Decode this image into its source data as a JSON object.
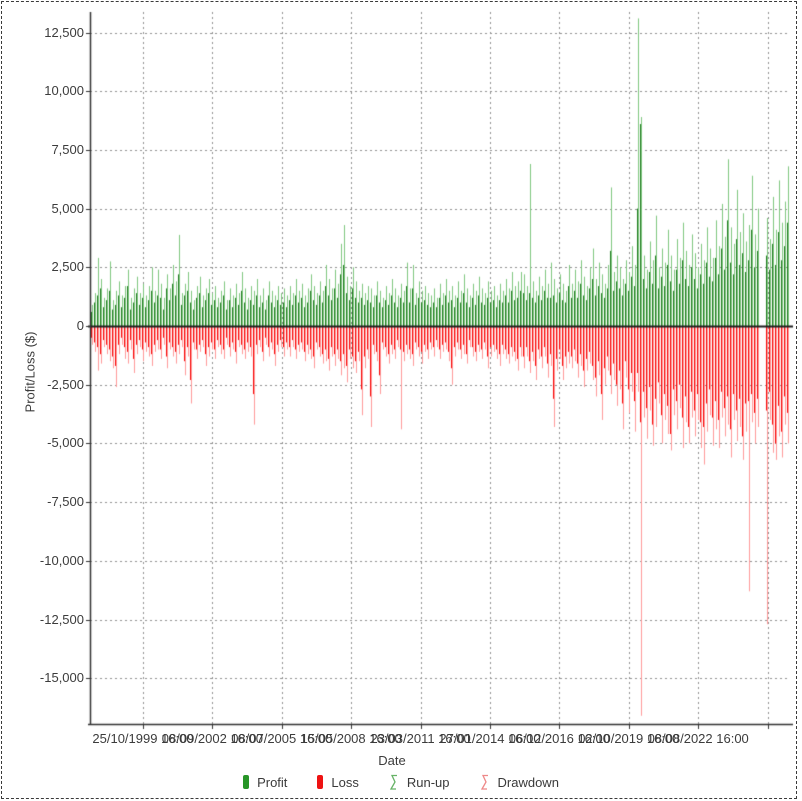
{
  "chart_data": {
    "type": "bar",
    "title": "",
    "xlabel": "Date",
    "ylabel": "Profit/Loss ($)",
    "grid": true,
    "legend_position": "bottom",
    "ylim": [
      -17000,
      13500
    ],
    "y_ticks": [
      12500,
      10000,
      7500,
      5000,
      2500,
      0,
      -2500,
      -5000,
      -7500,
      -10000,
      -12500,
      -15000
    ],
    "y_tick_labels": [
      "12,500",
      "10,000",
      "7,500",
      "5,000",
      "2,500",
      "0",
      "-2,500",
      "-5,000",
      "-7,500",
      "-10,000",
      "-12,500",
      "-15,000"
    ],
    "x_tick_labels": [
      "25/10/1999 16:00",
      "08/09/2002 16:00",
      "08/07/2005 16:00",
      "15/05/2008 16:00",
      "23/03/2011 16:00",
      "27/01/2014 16:00",
      "06/12/2016 16:00",
      "02/10/2019 16:00",
      "08/08/2022 16:00",
      ""
    ],
    "legend": [
      {
        "label": "Profit",
        "icon": "profit-swatch-icon",
        "color": "#279527",
        "style": "solid"
      },
      {
        "label": "Loss",
        "icon": "loss-swatch-icon",
        "color": "#ee1212",
        "style": "solid"
      },
      {
        "label": "Run-up",
        "icon": "runup-candle-icon",
        "color": "#66b266",
        "style": "outline"
      },
      {
        "label": "Drawdown",
        "icon": "drawdown-candle-icon",
        "color": "#ee8888",
        "style": "outline"
      }
    ],
    "colors": {
      "profit": "#1f7c1f",
      "runup": "#7fc77f",
      "loss": "#f80808",
      "drawdown": "#ff9a9a",
      "grid": "#8f8f8f",
      "axis": "#333333",
      "zero_line": "#1e1e1e",
      "text": "#3c3c3c"
    },
    "series_names": [
      "runup",
      "profit",
      "loss",
      "drawdown"
    ],
    "bars": [
      [
        900,
        600,
        -500,
        -800
      ],
      [
        1400,
        1000,
        -700,
        -1100
      ],
      [
        2900,
        1300,
        -900,
        -1900
      ],
      [
        2000,
        1600,
        -1200,
        -1600
      ],
      [
        1200,
        800,
        -600,
        -900
      ],
      [
        1600,
        1100,
        -800,
        -1200
      ],
      [
        2750,
        1500,
        -1000,
        -1500
      ],
      [
        1100,
        700,
        -1300,
        -1800
      ],
      [
        1500,
        900,
        -1700,
        -2600
      ],
      [
        1900,
        1300,
        -800,
        -1200
      ],
      [
        1300,
        800,
        -500,
        -800
      ],
      [
        1700,
        1200,
        -900,
        -1400
      ],
      [
        2400,
        1700,
        -1100,
        -1600
      ],
      [
        1200,
        700,
        -600,
        -1000
      ],
      [
        1600,
        1000,
        -1400,
        -2000
      ],
      [
        2100,
        1400,
        -800,
        -1200
      ],
      [
        1400,
        900,
        -600,
        -900
      ],
      [
        1800,
        1200,
        -1000,
        -1500
      ],
      [
        1300,
        800,
        -700,
        -1100
      ],
      [
        1700,
        1100,
        -900,
        -1300
      ],
      [
        2500,
        1500,
        -1200,
        -1700
      ],
      [
        1500,
        1000,
        -800,
        -1100
      ],
      [
        2400,
        1300,
        -600,
        -1000
      ],
      [
        1800,
        1200,
        -1000,
        -1400
      ],
      [
        1200,
        700,
        -500,
        -800
      ],
      [
        2200,
        1600,
        -1300,
        -1800
      ],
      [
        1600,
        1100,
        -700,
        -1000
      ],
      [
        2600,
        1800,
        -900,
        -1300
      ],
      [
        1900,
        1300,
        -1100,
        -1600
      ],
      [
        3880,
        2200,
        -800,
        -1200
      ],
      [
        1400,
        900,
        -600,
        -900
      ],
      [
        1800,
        1300,
        -1500,
        -2100
      ],
      [
        2300,
        1500,
        -900,
        -1300
      ],
      [
        1500,
        1000,
        -2300,
        -3300
      ],
      [
        1100,
        700,
        -700,
        -1000
      ],
      [
        1700,
        1200,
        -1000,
        -1400
      ],
      [
        2100,
        1400,
        -800,
        -1100
      ],
      [
        1300,
        800,
        -600,
        -900
      ],
      [
        1600,
        1100,
        -1200,
        -1700
      ],
      [
        2000,
        1400,
        -900,
        -1300
      ],
      [
        1400,
        900,
        -700,
        -1000
      ],
      [
        1700,
        1100,
        -1000,
        -1400
      ],
      [
        1200,
        800,
        -600,
        -900
      ],
      [
        1500,
        1000,
        -800,
        -1200
      ],
      [
        1900,
        1300,
        -1000,
        -1400
      ],
      [
        1100,
        700,
        -500,
        -800
      ],
      [
        1600,
        1100,
        -900,
        -1300
      ],
      [
        1300,
        800,
        -700,
        -1000
      ],
      [
        1800,
        1200,
        -1100,
        -1600
      ],
      [
        1400,
        900,
        -600,
        -900
      ],
      [
        2300,
        1500,
        -800,
        -1200
      ],
      [
        1600,
        1000,
        -1000,
        -1400
      ],
      [
        1200,
        700,
        -700,
        -1100
      ],
      [
        1700,
        1100,
        -900,
        -1300
      ],
      [
        1500,
        900,
        -2900,
        -4200
      ],
      [
        2000,
        1300,
        -800,
        -1200
      ],
      [
        1300,
        800,
        -600,
        -900
      ],
      [
        1600,
        1000,
        -1100,
        -1500
      ],
      [
        1100,
        700,
        -500,
        -800
      ],
      [
        1900,
        1300,
        -900,
        -1300
      ],
      [
        1500,
        1000,
        -700,
        -1000
      ],
      [
        1300,
        800,
        -1200,
        -1700
      ],
      [
        1700,
        1100,
        -800,
        -1100
      ],
      [
        1400,
        900,
        -600,
        -900
      ],
      [
        1600,
        1000,
        -900,
        -1300
      ],
      [
        1300,
        800,
        -700,
        -1000
      ],
      [
        1700,
        1100,
        -900,
        -1300
      ],
      [
        1400,
        900,
        -600,
        -900
      ],
      [
        2000,
        1300,
        -1000,
        -1400
      ],
      [
        1500,
        1000,
        -800,
        -1100
      ],
      [
        1800,
        1200,
        -700,
        -1000
      ],
      [
        1300,
        800,
        -1100,
        -1500
      ],
      [
        1600,
        1000,
        -800,
        -1200
      ],
      [
        2200,
        1500,
        -1000,
        -1400
      ],
      [
        1700,
        1100,
        -1300,
        -1800
      ],
      [
        1400,
        900,
        -700,
        -1000
      ],
      [
        1900,
        1300,
        -900,
        -1300
      ],
      [
        1500,
        1000,
        -1200,
        -1600
      ],
      [
        2600,
        1700,
        -1000,
        -1500
      ],
      [
        2000,
        1300,
        -1400,
        -1900
      ],
      [
        1600,
        1100,
        -900,
        -1300
      ],
      [
        2400,
        1600,
        -1200,
        -1700
      ],
      [
        1800,
        1200,
        -1000,
        -1400
      ],
      [
        3500,
        2200,
        -1500,
        -2100
      ],
      [
        4300,
        2600,
        -1200,
        -1800
      ],
      [
        2100,
        1400,
        -1700,
        -2400
      ],
      [
        1700,
        1100,
        -1000,
        -1400
      ],
      [
        2500,
        1600,
        -1300,
        -1800
      ],
      [
        1900,
        1200,
        -1500,
        -2000
      ],
      [
        1500,
        1000,
        -1100,
        -1500
      ],
      [
        1800,
        1200,
        -2700,
        -3800
      ],
      [
        1400,
        900,
        -1300,
        -1800
      ],
      [
        1700,
        1100,
        -1000,
        -1400
      ],
      [
        1600,
        1000,
        -3000,
        -4300
      ],
      [
        1300,
        800,
        -800,
        -1200
      ],
      [
        1900,
        1300,
        -1100,
        -1500
      ],
      [
        1500,
        1000,
        -2100,
        -2900
      ],
      [
        1200,
        800,
        -700,
        -1000
      ],
      [
        1700,
        1100,
        -900,
        -1300
      ],
      [
        1400,
        900,
        -1200,
        -1600
      ],
      [
        2000,
        1300,
        -800,
        -1200
      ],
      [
        1600,
        1000,
        -1000,
        -1400
      ],
      [
        1300,
        800,
        -600,
        -900
      ],
      [
        1800,
        1200,
        -1000,
        -4400
      ],
      [
        1500,
        1000,
        -1100,
        -1500
      ],
      [
        2700,
        1700,
        -800,
        -1200
      ],
      [
        1600,
        1000,
        -1000,
        -1400
      ],
      [
        2600,
        1600,
        -1200,
        -1700
      ],
      [
        1400,
        900,
        -700,
        -1000
      ],
      [
        1900,
        1200,
        -900,
        -1300
      ],
      [
        1500,
        1000,
        -1100,
        -1600
      ],
      [
        1700,
        1100,
        -800,
        -1100
      ],
      [
        1400,
        900,
        -1000,
        -1400
      ],
      [
        1300,
        800,
        -700,
        -1000
      ],
      [
        1600,
        1000,
        -900,
        -1300
      ],
      [
        1200,
        800,
        -600,
        -900
      ],
      [
        1800,
        1200,
        -1000,
        -1400
      ],
      [
        1400,
        900,
        -800,
        -1100
      ],
      [
        2000,
        1300,
        -700,
        -1000
      ],
      [
        1500,
        1000,
        -1100,
        -1500
      ],
      [
        1700,
        1100,
        -1800,
        -2500
      ],
      [
        1300,
        800,
        -900,
        -1300
      ],
      [
        1900,
        1200,
        -700,
        -1000
      ],
      [
        1500,
        1000,
        -1000,
        -1400
      ],
      [
        2200,
        1400,
        -800,
        -1200
      ],
      [
        1600,
        1000,
        -1200,
        -1600
      ],
      [
        1300,
        800,
        -600,
        -900
      ],
      [
        1800,
        1200,
        -900,
        -1300
      ],
      [
        1500,
        900,
        -1100,
        -1500
      ],
      [
        2100,
        1300,
        -800,
        -1100
      ],
      [
        1600,
        1000,
        -1000,
        -1400
      ],
      [
        1400,
        900,
        -700,
        -1000
      ],
      [
        1900,
        1200,
        -1300,
        -1800
      ],
      [
        1500,
        1000,
        -900,
        -1300
      ],
      [
        1700,
        1100,
        -800,
        -1100
      ],
      [
        1300,
        800,
        -1000,
        -1400
      ],
      [
        1800,
        1100,
        -1200,
        -1700
      ],
      [
        1500,
        1000,
        -800,
        -1200
      ],
      [
        2000,
        1300,
        -1000,
        -1400
      ],
      [
        1600,
        1000,
        -1200,
        -1600
      ],
      [
        2300,
        1500,
        -900,
        -1300
      ],
      [
        1700,
        1100,
        -1100,
        -1500
      ],
      [
        1900,
        1200,
        -1400,
        -1900
      ],
      [
        2300,
        1500,
        -900,
        -1300
      ],
      [
        2200,
        1400,
        -1300,
        -1800
      ],
      [
        1700,
        1100,
        -900,
        -1300
      ],
      [
        6900,
        1400,
        -1500,
        -2000
      ],
      [
        1900,
        1200,
        -1100,
        -1500
      ],
      [
        1500,
        1000,
        -1700,
        -2300
      ],
      [
        2100,
        1300,
        -1000,
        -1400
      ],
      [
        1700,
        1100,
        -1300,
        -1800
      ],
      [
        2400,
        1500,
        -900,
        -1300
      ],
      [
        1800,
        1200,
        -1600,
        -2200
      ],
      [
        2700,
        1200,
        -1200,
        -1700
      ],
      [
        2000,
        1300,
        -3100,
        -4300
      ],
      [
        1600,
        1000,
        -1400,
        -1900
      ],
      [
        2200,
        1400,
        -1000,
        -1400
      ],
      [
        1800,
        1100,
        -1700,
        -2300
      ],
      [
        1500,
        1000,
        -1300,
        -1800
      ],
      [
        2600,
        1700,
        -1100,
        -1600
      ],
      [
        1800,
        1200,
        -1300,
        -1800
      ],
      [
        2400,
        1500,
        -1000,
        -1500
      ],
      [
        1900,
        1200,
        -1600,
        -2200
      ],
      [
        2800,
        1800,
        -1200,
        -1700
      ],
      [
        2100,
        1300,
        -1900,
        -2600
      ],
      [
        1700,
        1100,
        -1400,
        -1900
      ],
      [
        2500,
        1600,
        -1100,
        -1600
      ],
      [
        3300,
        2000,
        -1700,
        -2300
      ],
      [
        2000,
        1300,
        -2200,
        -3000
      ],
      [
        2700,
        1700,
        -1500,
        -2100
      ],
      [
        2200,
        1400,
        -2900,
        -4000
      ],
      [
        1800,
        1200,
        -1800,
        -2500
      ],
      [
        2600,
        1600,
        -1300,
        -1900
      ],
      [
        5900,
        3200,
        -2100,
        -2900
      ],
      [
        2300,
        1500,
        -1600,
        -2300
      ],
      [
        3000,
        1900,
        -2500,
        -3400
      ],
      [
        2500,
        1600,
        -1900,
        -2700
      ],
      [
        2000,
        1300,
        -3300,
        -4400
      ],
      [
        2800,
        1800,
        -1500,
        -2200
      ],
      [
        2300,
        1500,
        -2700,
        -3700
      ],
      [
        3400,
        2100,
        -2000,
        -2800
      ],
      [
        2600,
        1700,
        -3200,
        -4500
      ],
      [
        13100,
        5000,
        -2000,
        -2800
      ],
      [
        8900,
        8600,
        -4100,
        -16600
      ],
      [
        3000,
        2000,
        -2800,
        -3900
      ],
      [
        2400,
        1600,
        -3500,
        -4800
      ],
      [
        3600,
        2300,
        -2600,
        -3600
      ],
      [
        2800,
        1800,
        -4200,
        -5100
      ],
      [
        4700,
        3000,
        -3100,
        -4300
      ],
      [
        2500,
        1600,
        -2400,
        -3300
      ],
      [
        3300,
        2100,
        -3800,
        -5000
      ],
      [
        2700,
        1700,
        -2900,
        -4000
      ],
      [
        4100,
        2600,
        -3400,
        -4600
      ],
      [
        3000,
        1900,
        -4600,
        -5300
      ],
      [
        2400,
        1500,
        -2700,
        -3800
      ],
      [
        3700,
        2400,
        -3200,
        -4400
      ],
      [
        2900,
        1800,
        -2500,
        -3500
      ],
      [
        4400,
        2800,
        -3900,
        -5200
      ],
      [
        3200,
        2000,
        -3000,
        -4100
      ],
      [
        2600,
        1700,
        -4300,
        -5000
      ],
      [
        3900,
        2500,
        -2800,
        -3900
      ],
      [
        3100,
        2000,
        -3600,
        -4700
      ],
      [
        2500,
        1600,
        -2900,
        -4000
      ],
      [
        3500,
        2200,
        -4100,
        -5200
      ],
      [
        2800,
        1800,
        -4300,
        -5900
      ],
      [
        4200,
        2700,
        -3300,
        -4500
      ],
      [
        3300,
        2100,
        -2700,
        -3800
      ],
      [
        2900,
        1900,
        -3900,
        -5100
      ],
      [
        4500,
        2900,
        -3200,
        -4400
      ],
      [
        3400,
        2200,
        -4000,
        -5200
      ],
      [
        5200,
        3300,
        -2800,
        -3900
      ],
      [
        3800,
        2400,
        -3500,
        -4700
      ],
      [
        7100,
        4500,
        -3000,
        -4200
      ],
      [
        4200,
        2700,
        -4400,
        -5600
      ],
      [
        3500,
        2200,
        -2900,
        -4000
      ],
      [
        5800,
        3700,
        -3600,
        -4900
      ],
      [
        4000,
        2600,
        -3100,
        -4300
      ],
      [
        4800,
        3100,
        -4700,
        -5700
      ],
      [
        3600,
        2300,
        -3300,
        -4500
      ],
      [
        4300,
        2800,
        -3200,
        -11300
      ],
      [
        6400,
        4100,
        -2900,
        -4100
      ],
      [
        3900,
        2500,
        -3700,
        -5000
      ],
      [
        5000,
        3200,
        -3100,
        -4300
      ],
      [
        0,
        0,
        0,
        0
      ],
      [
        0,
        0,
        0,
        0
      ],
      [
        4600,
        3000,
        -3600,
        -12700
      ],
      [
        3700,
        2400,
        -2800,
        -4000
      ],
      [
        5500,
        3500,
        -4200,
        -5400
      ],
      [
        4100,
        2600,
        -5000,
        -5700
      ],
      [
        6200,
        4000,
        -3400,
        -4700
      ],
      [
        4400,
        2800,
        -4500,
        -5600
      ],
      [
        5300,
        3400,
        -3000,
        -4200
      ],
      [
        6800,
        4400,
        -3700,
        -5000
      ]
    ]
  }
}
